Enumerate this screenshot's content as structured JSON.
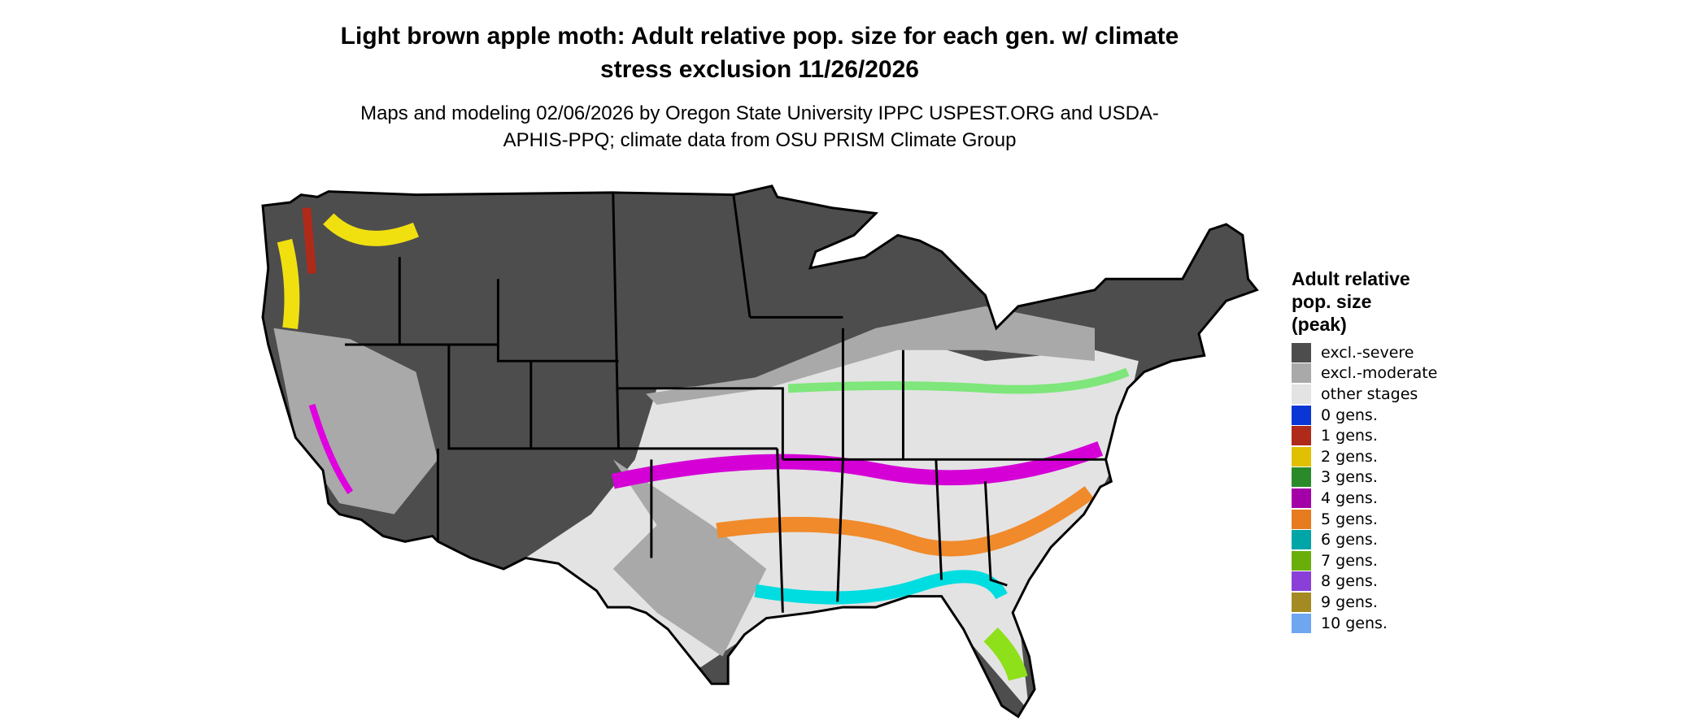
{
  "title": "Light brown apple moth: Adult relative pop. size for each gen. w/ climate stress exclusion 11/26/2026",
  "subtitle": "Maps and modeling 02/06/2026 by Oregon State University IPPC USPEST.ORG and USDA-APHIS-PPQ; climate data from OSU PRISM Climate Group",
  "legend": {
    "title": "Adult relative pop. size (peak)",
    "items": [
      {
        "label": "excl.-severe",
        "color": "#4d4d4d"
      },
      {
        "label": "excl.-moderate",
        "color": "#a9a9a9"
      },
      {
        "label": "other stages",
        "color": "#e3e3e3"
      },
      {
        "label": "0 gens.",
        "color": "#0a36d6"
      },
      {
        "label": "1 gens.",
        "color": "#b02a1a"
      },
      {
        "label": "2 gens.",
        "color": "#e0c000"
      },
      {
        "label": "3 gens.",
        "color": "#2a8a2a"
      },
      {
        "label": "4 gens.",
        "color": "#a400a8"
      },
      {
        "label": "5 gens.",
        "color": "#e67c1e"
      },
      {
        "label": "6 gens.",
        "color": "#00a5a8"
      },
      {
        "label": "7 gens.",
        "color": "#6aae0a"
      },
      {
        "label": "8 gens.",
        "color": "#8a40d8"
      },
      {
        "label": "9 gens.",
        "color": "#a48a22"
      },
      {
        "label": "10 gens.",
        "color": "#6ea6f0"
      }
    ]
  }
}
